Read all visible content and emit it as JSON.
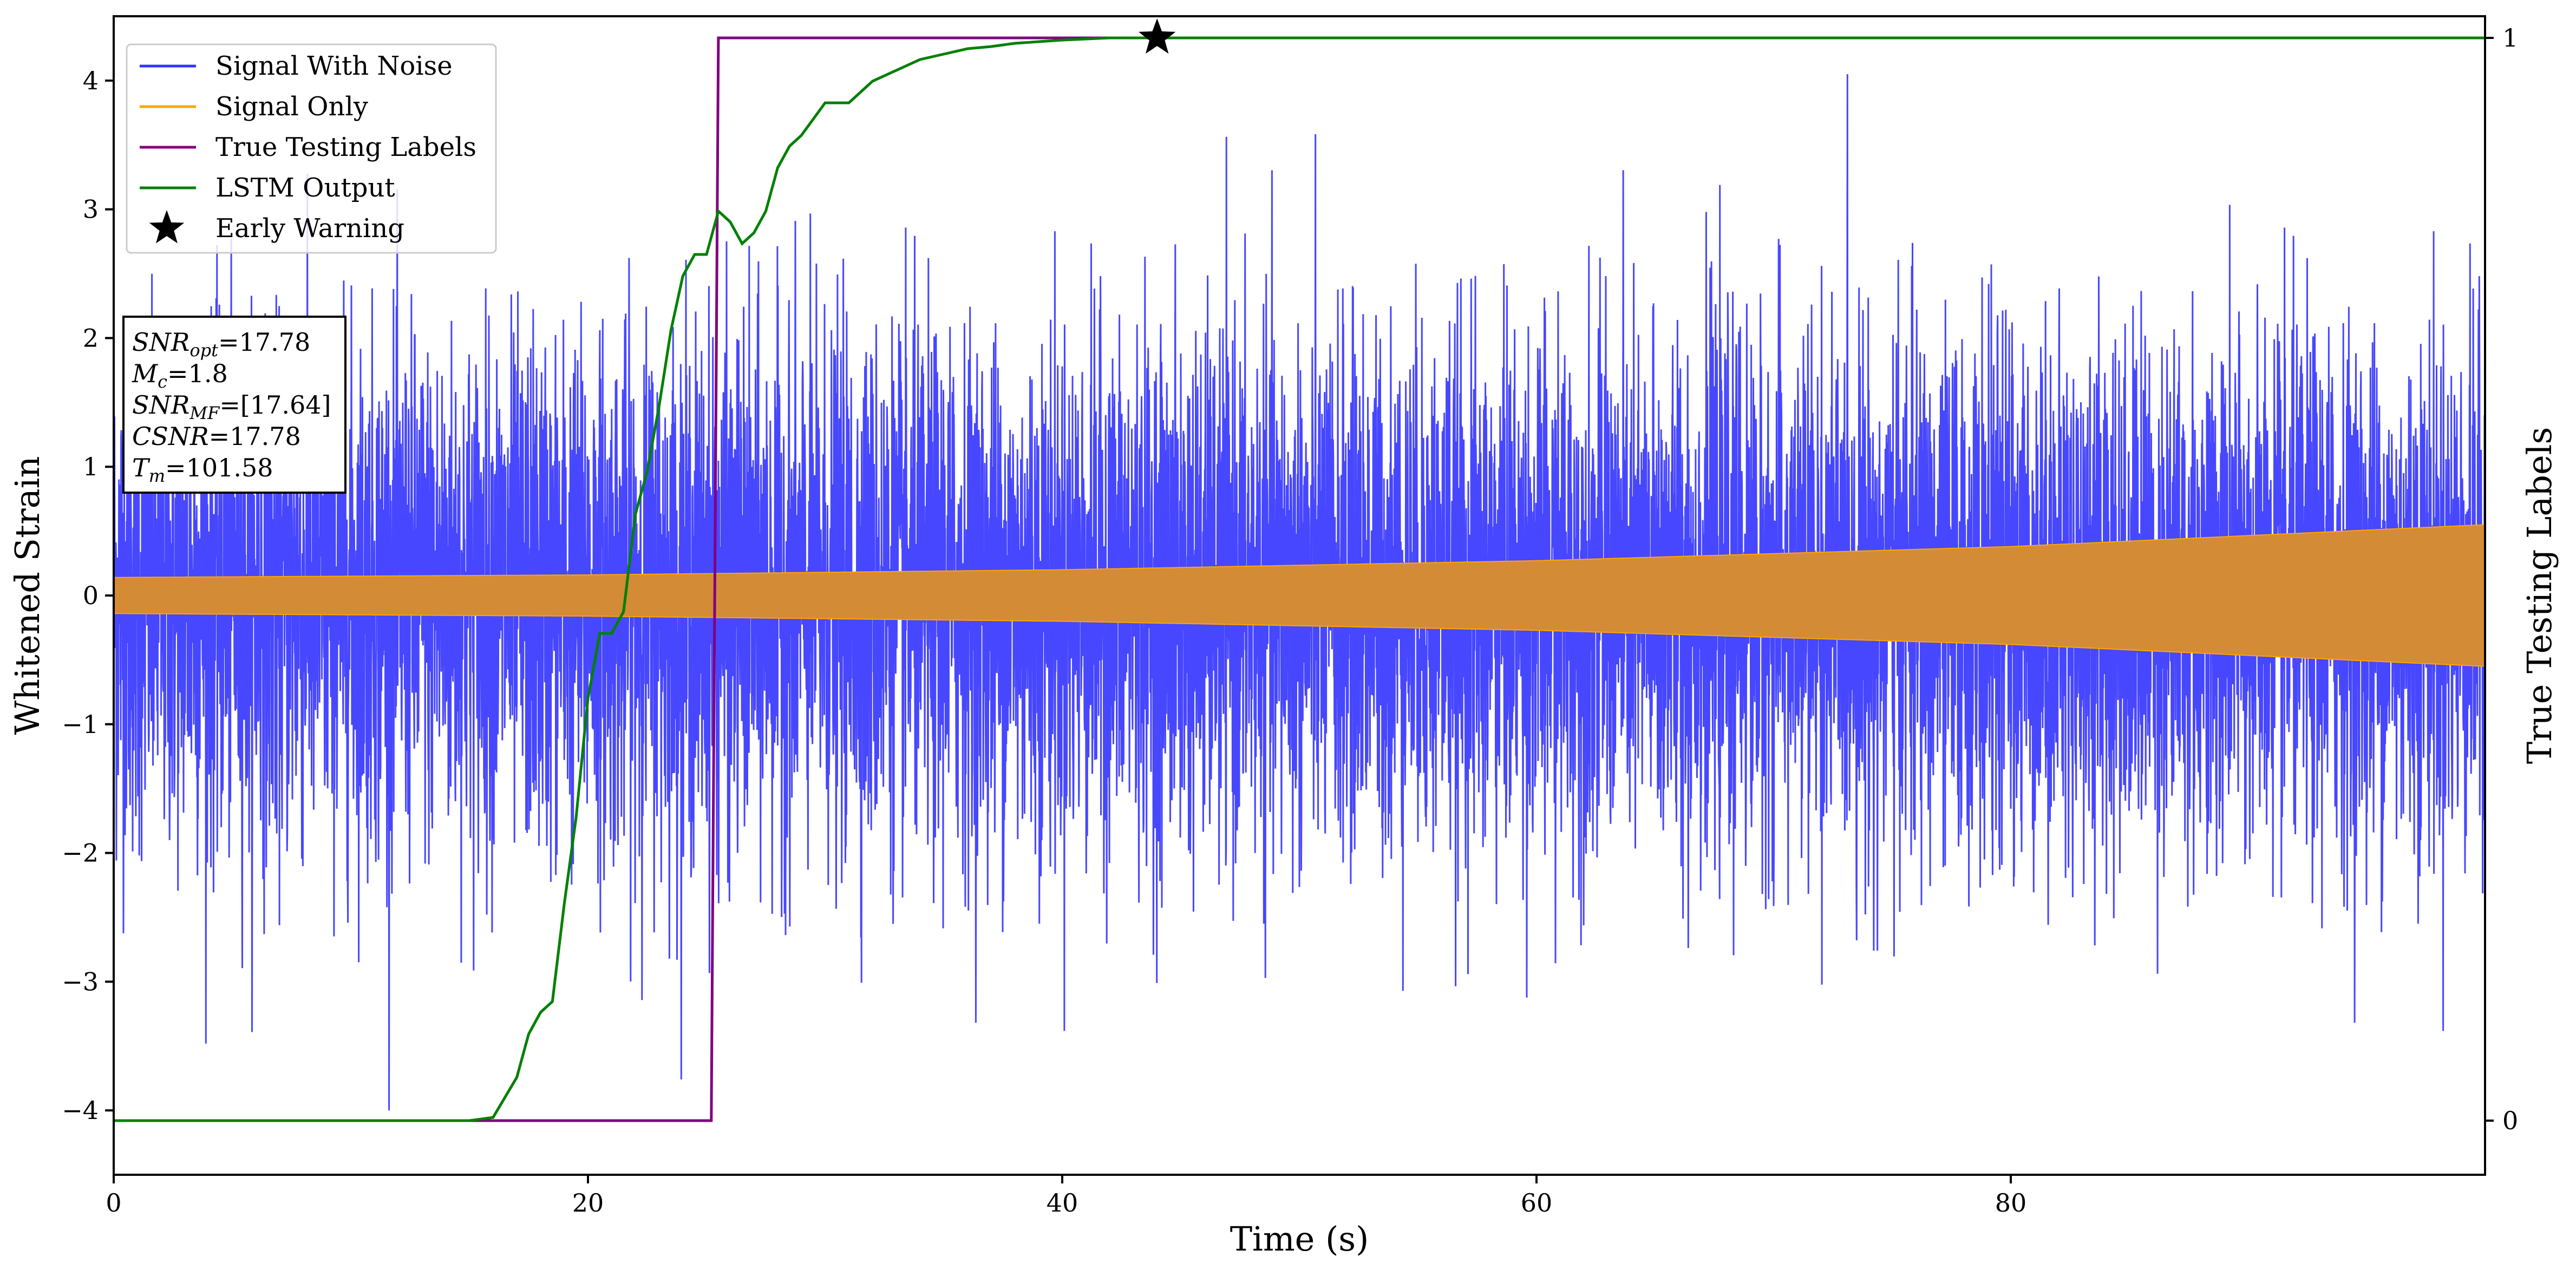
{
  "chart_data": {
    "type": "line",
    "xlabel": "Time (s)",
    "ylabel": "Whitened Strain",
    "ylabel_right": "True Testing Labels",
    "xlim": [
      0,
      100
    ],
    "ylim": [
      -4.5,
      4.5
    ],
    "ylim_right": [
      -0.05,
      1.02
    ],
    "x_ticks": [
      0,
      20,
      40,
      60,
      80
    ],
    "x_tick_labels": [
      "0",
      "20",
      "40",
      "60",
      "80"
    ],
    "y_ticks": [
      -4,
      -3,
      -2,
      -1,
      0,
      1,
      2,
      3,
      4
    ],
    "y_tick_labels": [
      "−4",
      "−3",
      "−2",
      "−1",
      "0",
      "1",
      "2",
      "3",
      "4"
    ],
    "y_right_ticks": [
      0,
      1
    ],
    "y_right_tick_labels": [
      "0",
      "1"
    ],
    "grid": false,
    "legend_position": "top-left",
    "series": [
      {
        "name": "Signal With Noise",
        "axis": "left",
        "color": "#3333ff",
        "description_values": {
          "typical_amplitude": 1.0,
          "peak_range": [
            -4.0,
            4.05
          ]
        }
      },
      {
        "name": "Signal Only",
        "axis": "left",
        "color": "#ffa500",
        "envelope": {
          "x": [
            0,
            20,
            40,
            60,
            80,
            100
          ],
          "amplitude": [
            0.14,
            0.16,
            0.2,
            0.27,
            0.38,
            0.55
          ]
        }
      },
      {
        "name": "True Testing Labels",
        "axis": "right",
        "color": "#800080",
        "x": [
          0,
          25.2,
          25.5,
          100
        ],
        "y": [
          0,
          0,
          1,
          1
        ]
      },
      {
        "name": "LSTM Output",
        "axis": "right",
        "color": "#008000",
        "x": [
          0,
          15.0,
          16.0,
          17.0,
          17.5,
          18.0,
          18.5,
          19.0,
          19.5,
          20.0,
          20.5,
          21.0,
          21.5,
          22.0,
          22.5,
          23.0,
          23.5,
          24.0,
          24.5,
          25.0,
          25.5,
          26.0,
          26.5,
          27.0,
          27.5,
          28.0,
          28.5,
          29.0,
          30.0,
          31.0,
          32.0,
          33.0,
          34.0,
          35.0,
          36.0,
          37.0,
          38.0,
          40.0,
          42.0,
          44.0,
          100
        ],
        "y": [
          0,
          0,
          0.003,
          0.04,
          0.08,
          0.1,
          0.11,
          0.2,
          0.28,
          0.39,
          0.45,
          0.45,
          0.47,
          0.56,
          0.6,
          0.66,
          0.73,
          0.78,
          0.8,
          0.8,
          0.84,
          0.83,
          0.81,
          0.82,
          0.84,
          0.88,
          0.9,
          0.91,
          0.94,
          0.94,
          0.96,
          0.97,
          0.98,
          0.985,
          0.99,
          0.992,
          0.995,
          0.998,
          1,
          1,
          1
        ]
      },
      {
        "name": "Early Warning",
        "axis": "right",
        "color": "#000000",
        "marker": "star",
        "x": [
          44.0
        ],
        "y": [
          1.0
        ]
      }
    ],
    "annotation_lines": [
      {
        "sym": "SNR",
        "sub": "opt",
        "rest": "=17.78"
      },
      {
        "sym": "M",
        "sub": "c",
        "rest": "=1.8"
      },
      {
        "sym": "SNR",
        "sub": "MF",
        "rest": "=[17.64]"
      },
      {
        "sym": "CSNR",
        "sub": "",
        "rest": "=17.78"
      },
      {
        "sym": "T",
        "sub": "m",
        "rest": "=101.58"
      }
    ]
  }
}
